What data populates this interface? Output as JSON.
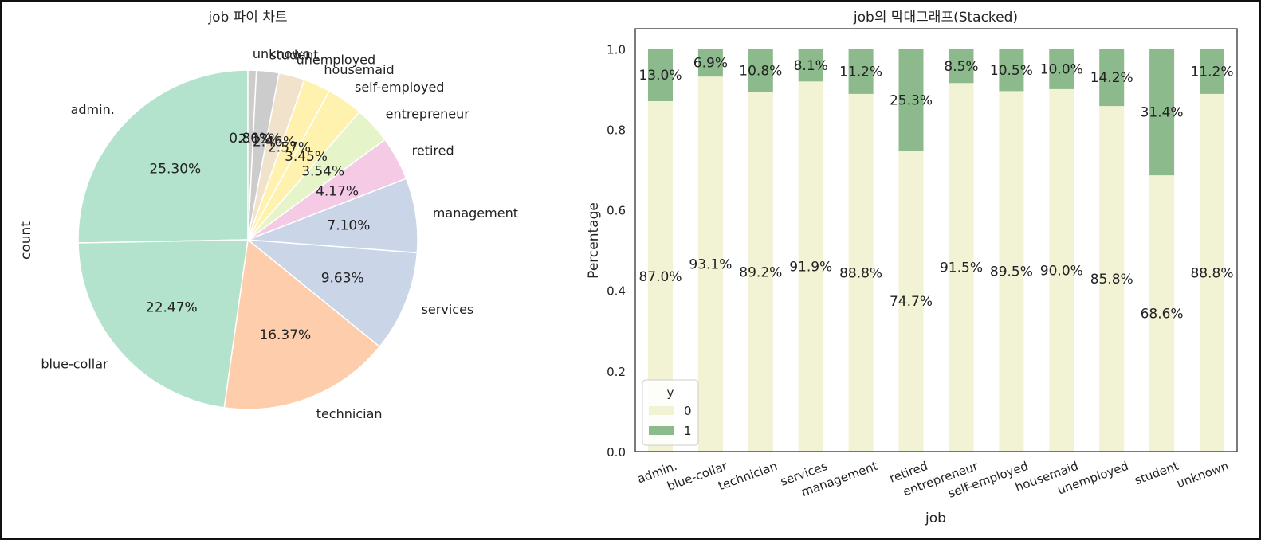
{
  "chart_data": [
    {
      "type": "pie",
      "title": "job 파이 차트",
      "ylabel": "count",
      "categories": [
        "admin.",
        "blue-collar",
        "technician",
        "services",
        "management",
        "retired",
        "entrepreneur",
        "self-employed",
        "housemaid",
        "unemployed",
        "student",
        "unknown"
      ],
      "values": [
        25.3,
        22.47,
        16.37,
        9.63,
        7.1,
        4.17,
        3.54,
        3.45,
        2.57,
        2.46,
        2.13,
        0.8
      ],
      "pct_labels": [
        "25.30%",
        "22.47%",
        "16.37%",
        "9.63%",
        "7.10%",
        "4.17%",
        "3.54%",
        "3.45%",
        "2.57%",
        "2.46%",
        "2.13%",
        "0.80%"
      ],
      "colors": [
        "#b3e2cd",
        "#b3e2cd",
        "#fdcdac",
        "#cbd5e8",
        "#cbd5e8",
        "#f4cae4",
        "#e6f5c9",
        "#fff2ae",
        "#fff2ae",
        "#f1e2cc",
        "#cccccc",
        "#cccccc"
      ]
    },
    {
      "type": "bar",
      "stacked": true,
      "title": "job의 막대그래프(Stacked)",
      "xlabel": "job",
      "ylabel": "Percentage",
      "ylim": [
        0,
        1.05
      ],
      "yticks": [
        "0.0",
        "0.2",
        "0.4",
        "0.6",
        "0.8",
        "1.0"
      ],
      "categories": [
        "admin.",
        "blue-collar",
        "technician",
        "services",
        "management",
        "retired",
        "entrepreneur",
        "self-employed",
        "housemaid",
        "unemployed",
        "student",
        "unknown"
      ],
      "series": [
        {
          "name": "0",
          "color": "#f2f2d5",
          "values": [
            0.87,
            0.931,
            0.892,
            0.919,
            0.888,
            0.747,
            0.915,
            0.895,
            0.9,
            0.858,
            0.686,
            0.888
          ],
          "labels": [
            "87.0%",
            "93.1%",
            "89.2%",
            "91.9%",
            "88.8%",
            "74.7%",
            "91.5%",
            "89.5%",
            "90.0%",
            "85.8%",
            "68.6%",
            "88.8%"
          ]
        },
        {
          "name": "1",
          "color": "#8cba8c",
          "values": [
            0.13,
            0.069,
            0.108,
            0.081,
            0.112,
            0.253,
            0.085,
            0.105,
            0.1,
            0.142,
            0.314,
            0.112
          ],
          "labels": [
            "13.0%",
            "6.9%",
            "10.8%",
            "8.1%",
            "11.2%",
            "25.3%",
            "8.5%",
            "10.5%",
            "10.0%",
            "14.2%",
            "31.4%",
            "11.2%"
          ]
        }
      ],
      "legend": {
        "title": "y",
        "position": "lower-left"
      }
    }
  ]
}
